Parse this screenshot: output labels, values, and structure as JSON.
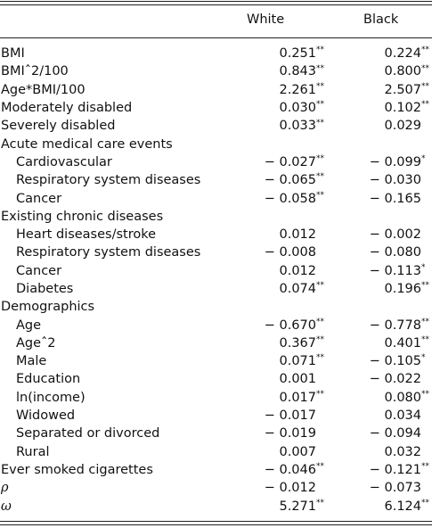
{
  "header": {
    "col1": "White",
    "col2": "Black"
  },
  "rows": [
    {
      "label": "BMI",
      "indent": false,
      "white": "0.251",
      "white_sig": "**",
      "black": "0.224",
      "black_sig": "**"
    },
    {
      "label": "BMIˆ2/100",
      "indent": false,
      "white": "0.843",
      "white_sig": "**",
      "black": "0.800",
      "black_sig": "**"
    },
    {
      "label": "Age*BMI/100",
      "indent": false,
      "white": "2.261",
      "white_sig": "**",
      "black": "2.507",
      "black_sig": "**"
    },
    {
      "label": "Moderately disabled",
      "indent": false,
      "white": "0.030",
      "white_sig": "**",
      "black": "0.102",
      "black_sig": "**"
    },
    {
      "label": "Severely disabled",
      "indent": false,
      "white": "0.033",
      "white_sig": "**",
      "black": "0.029",
      "black_sig": ""
    },
    {
      "label": "Acute medical care events",
      "indent": false,
      "white": "",
      "white_sig": "",
      "black": "",
      "black_sig": ""
    },
    {
      "label": "Cardiovascular",
      "indent": true,
      "white": "− 0.027",
      "white_sig": "**",
      "black": "− 0.099",
      "black_sig": "*"
    },
    {
      "label": "Respiratory system diseases",
      "indent": true,
      "white": "− 0.065",
      "white_sig": "**",
      "black": "− 0.030",
      "black_sig": ""
    },
    {
      "label": "Cancer",
      "indent": true,
      "white": "− 0.058",
      "white_sig": "**",
      "black": "− 0.165",
      "black_sig": ""
    },
    {
      "label": "Existing chronic diseases",
      "indent": false,
      "white": "",
      "white_sig": "",
      "black": "",
      "black_sig": ""
    },
    {
      "label": "Heart diseases/stroke",
      "indent": true,
      "white": "0.012",
      "white_sig": "",
      "black": "− 0.002",
      "black_sig": ""
    },
    {
      "label": "Respiratory system diseases",
      "indent": true,
      "white": "− 0.008",
      "white_sig": "",
      "black": "− 0.080",
      "black_sig": ""
    },
    {
      "label": "Cancer",
      "indent": true,
      "white": "0.012",
      "white_sig": "",
      "black": "− 0.113",
      "black_sig": "*"
    },
    {
      "label": "Diabetes",
      "indent": true,
      "white": "0.074",
      "white_sig": "**",
      "black": "0.196",
      "black_sig": "**"
    },
    {
      "label": "Demographics",
      "indent": false,
      "white": "",
      "white_sig": "",
      "black": "",
      "black_sig": ""
    },
    {
      "label": "Age",
      "indent": true,
      "white": "− 0.670",
      "white_sig": "**",
      "black": "− 0.778",
      "black_sig": "**"
    },
    {
      "label": "Ageˆ2",
      "indent": true,
      "white": "0.367",
      "white_sig": "**",
      "black": "0.401",
      "black_sig": "**"
    },
    {
      "label": "Male",
      "indent": true,
      "white": "0.071",
      "white_sig": "**",
      "black": "− 0.105",
      "black_sig": "*"
    },
    {
      "label": "Education",
      "indent": true,
      "white": "0.001",
      "white_sig": "",
      "black": "− 0.022",
      "black_sig": ""
    },
    {
      "label": "ln(income)",
      "indent": true,
      "white": "0.017",
      "white_sig": "**",
      "black": "0.080",
      "black_sig": "**"
    },
    {
      "label": "Widowed",
      "indent": true,
      "white": "− 0.017",
      "white_sig": "",
      "black": "0.034",
      "black_sig": ""
    },
    {
      "label": "Separated or divorced",
      "indent": true,
      "white": "− 0.019",
      "white_sig": "",
      "black": "− 0.094",
      "black_sig": ""
    },
    {
      "label": "Rural",
      "indent": true,
      "white": "0.007",
      "white_sig": "",
      "black": "0.032",
      "black_sig": ""
    },
    {
      "label": "Ever smoked cigarettes",
      "indent": false,
      "white": "− 0.046",
      "white_sig": "**",
      "black": "− 0.121",
      "black_sig": "**"
    },
    {
      "label": "ρ",
      "indent": false,
      "greek": true,
      "white": "− 0.012",
      "white_sig": "",
      "black": "− 0.073",
      "black_sig": ""
    },
    {
      "label": "ω",
      "indent": false,
      "greek": true,
      "white": "5.271",
      "white_sig": "**",
      "black": "6.124",
      "black_sig": "**"
    }
  ]
}
